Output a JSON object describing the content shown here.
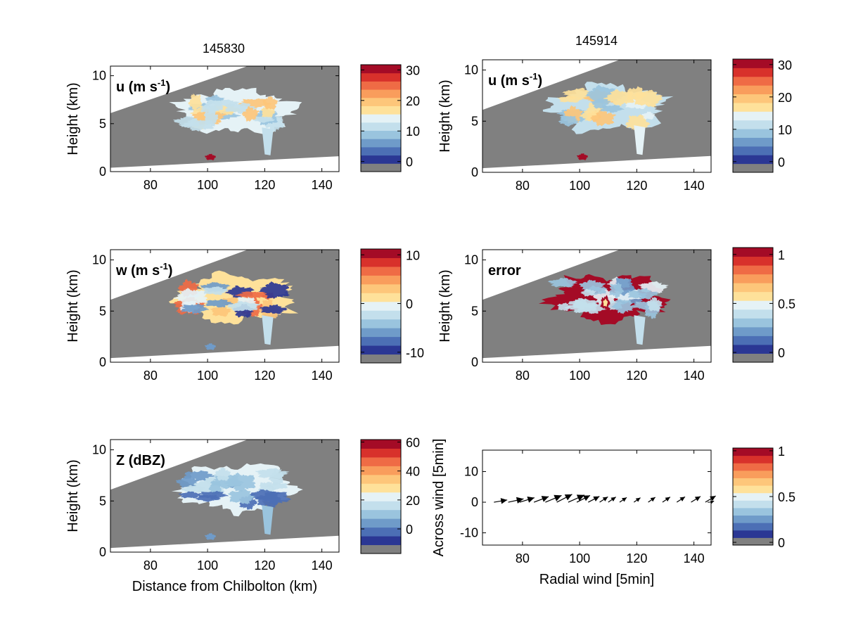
{
  "timestamps": [
    "145830",
    "145914"
  ],
  "colors": {
    "no_data": "#808080",
    "scale": [
      "#2b3794",
      "#4c6fb5",
      "#6f9bc9",
      "#9ac4de",
      "#c3dfec",
      "#e5f2f6",
      "#fee19a",
      "#fdc67a",
      "#f99d5c",
      "#ef6b45",
      "#d8312b",
      "#a40b26"
    ]
  },
  "panels": [
    {
      "id": "u-145830",
      "label": "u (m s",
      "label_sup": "-1",
      "ylabel": "Height (km)",
      "xlabel": "",
      "yticks": [
        "0",
        "5",
        "10"
      ],
      "xticks": [
        "80",
        "100",
        "120",
        "140"
      ],
      "cbar_ticks": [
        {
          "v": 0,
          "t": "0"
        },
        {
          "v": 10,
          "t": "10"
        },
        {
          "v": 20,
          "t": "20"
        },
        {
          "v": 30,
          "t": "30"
        }
      ],
      "cbar_range": [
        -3.3,
        31.7
      ]
    },
    {
      "id": "u-145914",
      "label": "u (m s",
      "label_sup": "-1",
      "ylabel": "Height (km)",
      "xlabel": "",
      "yticks": [
        "0",
        "5",
        "10"
      ],
      "xticks": [
        "80",
        "100",
        "120",
        "140"
      ],
      "cbar_ticks": [
        {
          "v": 0,
          "t": "0"
        },
        {
          "v": 10,
          "t": "10"
        },
        {
          "v": 20,
          "t": "20"
        },
        {
          "v": 30,
          "t": "30"
        }
      ],
      "cbar_range": [
        -3.3,
        31.7
      ]
    },
    {
      "id": "w-145830",
      "label": "w (m s",
      "label_sup": "-1",
      "ylabel": "Height (km)",
      "xlabel": "",
      "yticks": [
        "0",
        "5",
        "10"
      ],
      "xticks": [
        "80",
        "100",
        "120",
        "140"
      ],
      "cbar_ticks": [
        {
          "v": -10,
          "t": "-10"
        },
        {
          "v": 0,
          "t": "0"
        },
        {
          "v": 10,
          "t": "10"
        }
      ],
      "cbar_range": [
        -12.2,
        11.2
      ]
    },
    {
      "id": "error-145914",
      "label": "error",
      "label_sup": "",
      "ylabel": "Height (km)",
      "xlabel": "",
      "yticks": [
        "0",
        "5",
        "10"
      ],
      "xticks": [
        "80",
        "100",
        "120",
        "140"
      ],
      "cbar_ticks": [
        {
          "v": 0,
          "t": "0"
        },
        {
          "v": 0.5,
          "t": "0.5"
        },
        {
          "v": 1,
          "t": "1"
        }
      ],
      "cbar_range": [
        -0.1,
        1.07
      ]
    },
    {
      "id": "z-145830",
      "label": "Z (dBZ)",
      "label_sup": "",
      "ylabel": "Height (km)",
      "xlabel": "Distance from Chilbolton (km)",
      "yticks": [
        "0",
        "5",
        "10"
      ],
      "xticks": [
        "80",
        "100",
        "120",
        "140"
      ],
      "cbar_ticks": [
        {
          "v": 0,
          "t": "0"
        },
        {
          "v": 20,
          "t": "20"
        },
        {
          "v": 40,
          "t": "40"
        },
        {
          "v": 60,
          "t": "60"
        }
      ],
      "cbar_range": [
        -17,
        61.7
      ]
    },
    {
      "id": "wind-vectors",
      "label": "",
      "label_sup": "",
      "ylabel": "Across wind [5min]",
      "xlabel": "Radial wind [5min]",
      "yticks": [
        "-10",
        "0",
        "10"
      ],
      "xticks": [
        "80",
        "100",
        "120",
        "140"
      ],
      "cbar_ticks": [
        {
          "v": 0,
          "t": "0"
        },
        {
          "v": 0.5,
          "t": "0.5"
        },
        {
          "v": 1,
          "t": "1"
        }
      ],
      "cbar_range": [
        -0.03,
        1.03
      ]
    }
  ],
  "chart_data": {
    "type": "heatmap",
    "x_range_km": [
      66,
      146
    ],
    "y_range_km": [
      0,
      11
    ],
    "quiver": {
      "type": "quiver",
      "ylim": [
        -14,
        17
      ],
      "x": [
        70,
        75,
        79,
        84,
        88,
        92,
        96,
        99,
        103,
        107,
        110,
        114,
        119,
        124,
        129,
        134,
        139,
        144,
        146
      ],
      "u": [
        4.5,
        5.2,
        5.0,
        5.0,
        5.5,
        5.2,
        5.5,
        4.5,
        3.8,
        2.8,
        2.6,
        2.4,
        2.2,
        2.4,
        2.6,
        2.8,
        3.2,
        3.5,
        1.0
      ],
      "v": [
        1.0,
        1.5,
        2.0,
        2.5,
        3.0,
        3.5,
        3.2,
        3.0,
        2.6,
        2.4,
        2.3,
        2.1,
        2.0,
        2.2,
        2.3,
        2.4,
        2.6,
        2.8,
        0.5
      ]
    }
  }
}
